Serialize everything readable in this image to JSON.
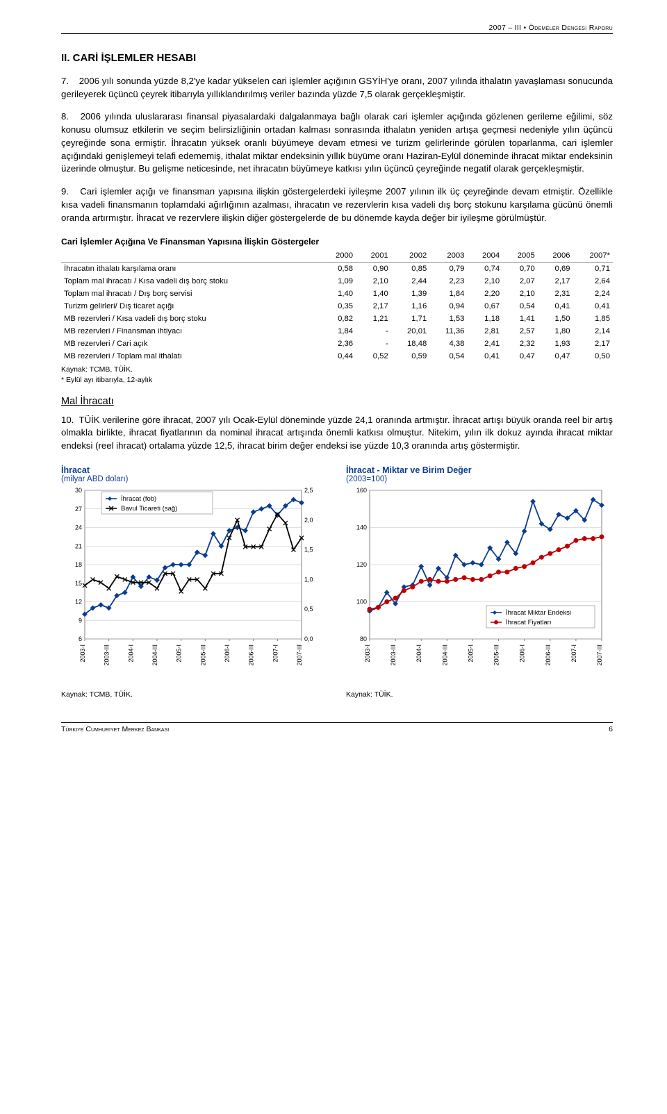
{
  "meta": {
    "header_right": "2007 – III • Ödemeler Dengesi Raporu",
    "footer_left": "Türkiye Cumhuriyet Merkez Bankası",
    "page_number": "6"
  },
  "section": {
    "title": "II. CARİ İŞLEMLER HESABI",
    "paragraphs": [
      {
        "n": "7.",
        "text": "2006 yılı sonunda yüzde 8,2'ye kadar yükselen cari işlemler açığının GSYİH'ye oranı, 2007 yılında ithalatın yavaşlaması sonucunda gerileyerek üçüncü çeyrek itibarıyla yıllıklandırılmış veriler bazında yüzde 7,5 olarak gerçekleşmiştir."
      },
      {
        "n": "8.",
        "text": "2006 yılında uluslararası finansal piyasalardaki dalgalanmaya bağlı olarak cari işlemler açığında gözlenen gerileme eğilimi, söz konusu olumsuz etkilerin ve seçim belirsizliğinin ortadan kalması sonrasında ithalatın yeniden artışa geçmesi nedeniyle yılın üçüncü çeyreğinde sona ermiştir. İhracatın yüksek oranlı büyümeye devam etmesi ve turizm gelirlerinde görülen toparlanma, cari işlemler açığındaki genişlemeyi telafi edememiş, ithalat miktar endeksinin yıllık büyüme oranı Haziran-Eylül döneminde ihracat miktar endeksinin üzerinde olmuştur. Bu gelişme neticesinde, net ihracatın büyümeye katkısı yılın üçüncü çeyreğinde negatif olarak gerçekleşmiştir."
      },
      {
        "n": "9.",
        "text": "Cari işlemler açığı ve finansman yapısına ilişkin göstergelerdeki iyileşme 2007 yılının ilk üç çeyreğinde devam etmiştir. Özellikle kısa vadeli finansmanın toplamdaki ağırlığının azalması, ihracatın ve rezervlerin kısa vadeli dış borç stokunu karşılama gücünü önemli oranda artırmıştır. İhracat ve rezervlere ilişkin diğer göstergelerde de bu dönemde kayda değer bir iyileşme görülmüştür."
      }
    ]
  },
  "table": {
    "title": "Cari İşlemler Açığına Ve Finansman Yapısına İlişkin Göstergeler",
    "columns": [
      "2000",
      "2001",
      "2002",
      "2003",
      "2004",
      "2005",
      "2006",
      "2007*"
    ],
    "rows": [
      {
        "label": "İhracatın ithalatı karşılama oranı",
        "cells": [
          "0,58",
          "0,90",
          "0,85",
          "0,79",
          "0,74",
          "0,70",
          "0,69",
          "0,71"
        ]
      },
      {
        "label": "Toplam mal ihracatı / Kısa vadeli dış borç stoku",
        "cells": [
          "1,09",
          "2,10",
          "2,44",
          "2,23",
          "2,10",
          "2,07",
          "2,17",
          "2,64"
        ]
      },
      {
        "label": "Toplam mal ihracatı / Dış borç servisi",
        "cells": [
          "1,40",
          "1,40",
          "1,39",
          "1,84",
          "2,20",
          "2,10",
          "2,31",
          "2,24"
        ]
      },
      {
        "label": "Turizm gelirleri/ Dış ticaret açığı",
        "cells": [
          "0,35",
          "2,17",
          "1,16",
          "0,94",
          "0,67",
          "0,54",
          "0,41",
          "0,41"
        ]
      },
      {
        "label": "MB rezervleri / Kısa vadeli dış borç stoku",
        "cells": [
          "0,82",
          "1,21",
          "1,71",
          "1,53",
          "1,18",
          "1,41",
          "1,50",
          "1,85"
        ]
      },
      {
        "label": "MB rezervleri / Finansman ihtiyacı",
        "cells": [
          "1,84",
          "-",
          "20,01",
          "11,36",
          "2,81",
          "2,57",
          "1,80",
          "2,14"
        ]
      },
      {
        "label": "MB rezervleri / Cari açık",
        "cells": [
          "2,36",
          "-",
          "18,48",
          "4,38",
          "2,41",
          "2,32",
          "1,93",
          "2,17"
        ]
      },
      {
        "label": "MB rezervleri / Toplam mal ithalatı",
        "cells": [
          "0,44",
          "0,52",
          "0,59",
          "0,54",
          "0,41",
          "0,47",
          "0,47",
          "0,50"
        ]
      }
    ],
    "footnote_source": "Kaynak: TCMB, TÜİK.",
    "footnote_star": "* Eylül ayı itibarıyla, 12-aylık"
  },
  "subsection": {
    "title": "Mal İhracatı",
    "paragraph": {
      "n": "10.",
      "text": "TÜİK verilerine göre ihracat, 2007 yılı Ocak-Eylül döneminde yüzde 24,1 oranında artmıştır. İhracat artışı büyük oranda reel bir artış olmakla birlikte, ihracat fiyatlarının da nominal ihracat artışında önemli katkısı olmuştur. Nitekim, yılın ilk dokuz ayında ihracat miktar endeksi (reel ihracat) ortalama yüzde 12,5, ihracat birim değer endeksi ise yüzde 10,3 oranında artış göstermiştir."
    }
  },
  "chart_left": {
    "type": "line-dual-axis",
    "title": "İhracat",
    "subtitle": "(milyar ABD doları)",
    "title_color": "#0a3d91",
    "series_a": {
      "name": "İhracat (fob)",
      "color": "#0a3d91",
      "marker": "diamond"
    },
    "series_b": {
      "name": "Bavul Ticareti (sağ)",
      "color": "#000000",
      "marker": "x"
    },
    "x_labels": [
      "2003-I",
      "2003-III",
      "2004-I",
      "2004-III",
      "2005-I",
      "2005-III",
      "2006-I",
      "2006-III",
      "2007-I",
      "2007-III"
    ],
    "y_left": {
      "min": 6,
      "max": 30,
      "step": 3
    },
    "y_right": {
      "min": 0.0,
      "max": 2.5,
      "step": 0.5
    },
    "series_a_values": [
      10,
      11,
      11.5,
      11,
      13,
      13.5,
      16,
      14.5,
      16,
      15.5,
      17.5,
      18,
      18,
      18,
      20,
      19.5,
      23,
      21,
      23.5,
      24,
      23.5,
      26.5,
      27,
      27.5,
      26,
      27.5,
      28.5,
      28
    ],
    "series_b_values": [
      0.9,
      1.0,
      0.95,
      0.85,
      1.05,
      1.0,
      0.95,
      0.95,
      0.95,
      0.85,
      1.1,
      1.1,
      0.8,
      1.0,
      1.0,
      0.85,
      1.1,
      1.1,
      1.7,
      2.0,
      1.55,
      1.55,
      1.55,
      1.85,
      2.1,
      1.95,
      1.5,
      1.7
    ],
    "source": "Kaynak: TCMB, TÜİK.",
    "background": "#ffffff",
    "grid_color": "#bfbfbf",
    "axis_fontsize": 9,
    "line_width": 1.8
  },
  "chart_right": {
    "type": "line",
    "title": "İhracat - Miktar ve Birim Değer",
    "subtitle": "(2003=100)",
    "title_color": "#0a3d91",
    "series_a": {
      "name": "İhracat Miktar Endeksi",
      "color": "#0a3d91",
      "marker": "diamond"
    },
    "series_b": {
      "name": "İhracat Fiyatları",
      "color": "#c00000",
      "marker": "circle"
    },
    "x_labels": [
      "2003-I",
      "2003-III",
      "2004-I",
      "2004-III",
      "2005-I",
      "2005-III",
      "2006-I",
      "2006-III",
      "2007-I",
      "2007-III"
    ],
    "y": {
      "min": 80,
      "max": 160,
      "step": 20
    },
    "series_a_values": [
      95,
      97,
      105,
      99,
      108,
      109,
      119,
      109,
      118,
      113,
      125,
      120,
      121,
      120,
      129,
      123,
      132,
      126,
      138,
      154,
      142,
      139,
      147,
      145,
      149,
      144,
      155,
      152
    ],
    "series_b_values": [
      96,
      97,
      100,
      102,
      106,
      108,
      111,
      112,
      111,
      111,
      112,
      113,
      112,
      112,
      114,
      116,
      116,
      118,
      119,
      121,
      124,
      126,
      128,
      130,
      133,
      134,
      134,
      135
    ],
    "source": "Kaynak: TÜİK.",
    "background": "#ffffff",
    "grid_color": "#bfbfbf",
    "axis_fontsize": 9,
    "line_width": 1.8
  }
}
